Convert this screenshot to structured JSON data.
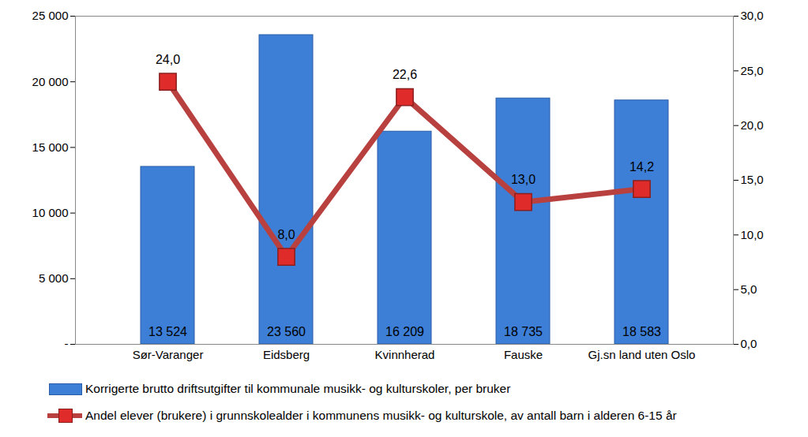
{
  "chart_data": {
    "type": "bar",
    "categories": [
      "Sør-Varanger",
      "Eidsberg",
      "Kvinnherad",
      "Fauske",
      "Gj.sn land uten Oslo"
    ],
    "series": [
      {
        "name": "Korrigerte brutto driftsutgifter til kommunale musikk- og kulturskoler, per bruker",
        "type": "bar",
        "color": "#3d7fd6",
        "values": [
          13524,
          23560,
          16209,
          18735,
          18583
        ],
        "value_labels": [
          "13 524",
          "23 560",
          "16 209",
          "18 735",
          "18 583"
        ]
      },
      {
        "name": "Andel elever (brukere) i grunnskolealder i  kommunens musikk- og kulturskole, av antall barn i alderen 6-15 år",
        "type": "line",
        "axis": "y2",
        "color": "#b8413f",
        "marker": "square",
        "values": [
          24.0,
          8.0,
          22.6,
          13.0,
          14.2
        ],
        "value_labels": [
          "24,0",
          "8,0",
          "22,6",
          "13,0",
          "14,2"
        ]
      }
    ],
    "ylim": [
      0,
      25000
    ],
    "yticks": [
      {
        "value": 0,
        "label": "-"
      },
      {
        "value": 5000,
        "label": "5 000"
      },
      {
        "value": 10000,
        "label": "10 000"
      },
      {
        "value": 15000,
        "label": "15 000"
      },
      {
        "value": 20000,
        "label": "20 000"
      },
      {
        "value": 25000,
        "label": "25 000"
      }
    ],
    "y2lim": [
      0,
      30
    ],
    "y2ticks": [
      {
        "value": 0,
        "label": "0,0"
      },
      {
        "value": 5,
        "label": "5,0"
      },
      {
        "value": 10,
        "label": "10,0"
      },
      {
        "value": 15,
        "label": "15,0"
      },
      {
        "value": 20,
        "label": "20,0"
      },
      {
        "value": 25,
        "label": "25,0"
      },
      {
        "value": 30,
        "label": "30,0"
      }
    ],
    "data_labels": true,
    "grid": false,
    "legend": "bottom"
  }
}
